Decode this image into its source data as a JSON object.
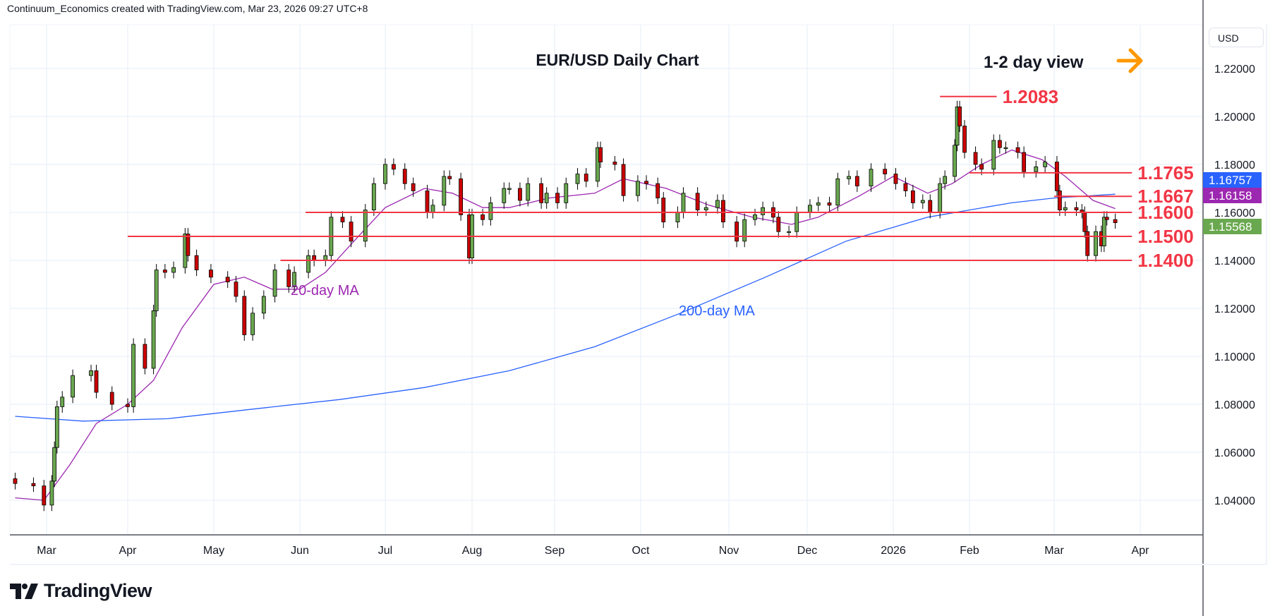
{
  "header": {
    "attribution": "Continuum_Economics created with TradingView.com, Mar 23, 2026 09:27 UTC+8"
  },
  "footer": {
    "logo_text": "TradingView"
  },
  "price_scale": {
    "currency": "USD"
  },
  "colors": {
    "up": "#6aa84f",
    "down": "#cc0000",
    "level": "#f23645",
    "ma20": "#9c27b0",
    "ma200": "#2962ff",
    "arrow": "#ff9800",
    "grid": "#e6eef5"
  },
  "chart_data": {
    "type": "candlestick",
    "title": "EUR/USD Daily Chart",
    "subtitle": "1-2 day view",
    "ylim": [
      1.025,
      1.235
    ],
    "y_ticks": [
      "1.04000",
      "1.06000",
      "1.08000",
      "1.10000",
      "1.12000",
      "1.14000",
      "1.16000",
      "1.18000",
      "1.20000",
      "1.22000"
    ],
    "x_ticks": [
      [
        "2025-03-01",
        "Mar"
      ],
      [
        "2025-04-01",
        "Apr"
      ],
      [
        "2025-05-01",
        "May"
      ],
      [
        "2025-06-01",
        "Jun"
      ],
      [
        "2025-07-01",
        "Jul"
      ],
      [
        "2025-08-01",
        "Aug"
      ],
      [
        "2025-09-01",
        "Sep"
      ],
      [
        "2025-10-01",
        "Oct"
      ],
      [
        "2025-11-01",
        "Nov"
      ],
      [
        "2025-12-01",
        "Dec"
      ],
      [
        "2026-01-01",
        "2026"
      ],
      [
        "2026-02-01",
        "Feb"
      ],
      [
        "2026-03-01",
        "Mar"
      ],
      [
        "2026-04-01",
        "Apr"
      ]
    ],
    "closes": [
      [
        "2025-02-17",
        1.047
      ],
      [
        "2025-02-24",
        1.046
      ],
      [
        "2025-02-28",
        1.038
      ],
      [
        "2025-03-03",
        1.048
      ],
      [
        "2025-03-04",
        1.062
      ],
      [
        "2025-03-05",
        1.079
      ],
      [
        "2025-03-07",
        1.083
      ],
      [
        "2025-03-11",
        1.092
      ],
      [
        "2025-03-18",
        1.094
      ],
      [
        "2025-03-20",
        1.085
      ],
      [
        "2025-03-26",
        1.08
      ],
      [
        "2025-04-01",
        1.079
      ],
      [
        "2025-04-03",
        1.105
      ],
      [
        "2025-04-07",
        1.095
      ],
      [
        "2025-04-10",
        1.119
      ],
      [
        "2025-04-11",
        1.136
      ],
      [
        "2025-04-14",
        1.135
      ],
      [
        "2025-04-17",
        1.137
      ],
      [
        "2025-04-21",
        1.151
      ],
      [
        "2025-04-22",
        1.142
      ],
      [
        "2025-04-25",
        1.136
      ],
      [
        "2025-04-30",
        1.133
      ],
      [
        "2025-05-06",
        1.131
      ],
      [
        "2025-05-09",
        1.125
      ],
      [
        "2025-05-12",
        1.109
      ],
      [
        "2025-05-15",
        1.118
      ],
      [
        "2025-05-19",
        1.125
      ],
      [
        "2025-05-23",
        1.136
      ],
      [
        "2025-05-28",
        1.129
      ],
      [
        "2025-05-30",
        1.135
      ],
      [
        "2025-06-04",
        1.142
      ],
      [
        "2025-06-06",
        1.14
      ],
      [
        "2025-06-10",
        1.142
      ],
      [
        "2025-06-12",
        1.158
      ],
      [
        "2025-06-16",
        1.156
      ],
      [
        "2025-06-19",
        1.148
      ],
      [
        "2025-06-24",
        1.161
      ],
      [
        "2025-06-27",
        1.172
      ],
      [
        "2025-07-01",
        1.18
      ],
      [
        "2025-07-04",
        1.178
      ],
      [
        "2025-07-08",
        1.172
      ],
      [
        "2025-07-11",
        1.169
      ],
      [
        "2025-07-16",
        1.16
      ],
      [
        "2025-07-18",
        1.163
      ],
      [
        "2025-07-22",
        1.175
      ],
      [
        "2025-07-24",
        1.174
      ],
      [
        "2025-07-28",
        1.159
      ],
      [
        "2025-07-31",
        1.141
      ],
      [
        "2025-08-01",
        1.159
      ],
      [
        "2025-08-05",
        1.157
      ],
      [
        "2025-08-08",
        1.164
      ],
      [
        "2025-08-13",
        1.17
      ],
      [
        "2025-08-15",
        1.17
      ],
      [
        "2025-08-19",
        1.165
      ],
      [
        "2025-08-22",
        1.172
      ],
      [
        "2025-08-27",
        1.164
      ],
      [
        "2025-08-29",
        1.168
      ],
      [
        "2025-09-02",
        1.164
      ],
      [
        "2025-09-05",
        1.172
      ],
      [
        "2025-09-09",
        1.176
      ],
      [
        "2025-09-12",
        1.173
      ],
      [
        "2025-09-16",
        1.187
      ],
      [
        "2025-09-17",
        1.181
      ],
      [
        "2025-09-22",
        1.18
      ],
      [
        "2025-09-25",
        1.167
      ],
      [
        "2025-09-30",
        1.173
      ],
      [
        "2025-10-03",
        1.172
      ],
      [
        "2025-10-07",
        1.166
      ],
      [
        "2025-10-09",
        1.156
      ],
      [
        "2025-10-14",
        1.16
      ],
      [
        "2025-10-16",
        1.168
      ],
      [
        "2025-10-21",
        1.161
      ],
      [
        "2025-10-24",
        1.162
      ],
      [
        "2025-10-28",
        1.165
      ],
      [
        "2025-10-30",
        1.156
      ],
      [
        "2025-11-04",
        1.148
      ],
      [
        "2025-11-07",
        1.157
      ],
      [
        "2025-11-11",
        1.159
      ],
      [
        "2025-11-14",
        1.162
      ],
      [
        "2025-11-18",
        1.158
      ],
      [
        "2025-11-20",
        1.152
      ],
      [
        "2025-11-24",
        1.152
      ],
      [
        "2025-11-27",
        1.16
      ],
      [
        "2025-12-02",
        1.163
      ],
      [
        "2025-12-05",
        1.164
      ],
      [
        "2025-12-09",
        1.163
      ],
      [
        "2025-12-12",
        1.174
      ],
      [
        "2025-12-16",
        1.175
      ],
      [
        "2025-12-19",
        1.171
      ],
      [
        "2025-12-24",
        1.178
      ],
      [
        "2025-12-29",
        1.176
      ],
      [
        "2026-01-02",
        1.172
      ],
      [
        "2026-01-06",
        1.169
      ],
      [
        "2026-01-09",
        1.164
      ],
      [
        "2026-01-13",
        1.165
      ],
      [
        "2026-01-16",
        1.16
      ],
      [
        "2026-01-20",
        1.172
      ],
      [
        "2026-01-22",
        1.175
      ],
      [
        "2026-01-26",
        1.188
      ],
      [
        "2026-01-27",
        1.204
      ],
      [
        "2026-01-28",
        1.196
      ],
      [
        "2026-01-30",
        1.185
      ],
      [
        "2026-02-03",
        1.18
      ],
      [
        "2026-02-05",
        1.178
      ],
      [
        "2026-02-09",
        1.19
      ],
      [
        "2026-02-11",
        1.187
      ],
      [
        "2026-02-13",
        1.187
      ],
      [
        "2026-02-17",
        1.185
      ],
      [
        "2026-02-19",
        1.177
      ],
      [
        "2026-02-23",
        1.179
      ],
      [
        "2026-02-26",
        1.181
      ],
      [
        "2026-03-02",
        1.169
      ],
      [
        "2026-03-03",
        1.161
      ],
      [
        "2026-03-05",
        1.162
      ],
      [
        "2026-03-09",
        1.161
      ],
      [
        "2026-03-11",
        1.16
      ],
      [
        "2026-03-12",
        1.152
      ],
      [
        "2026-03-13",
        1.142
      ],
      [
        "2026-03-16",
        1.152
      ],
      [
        "2026-03-18",
        1.146
      ],
      [
        "2026-03-19",
        1.158
      ],
      [
        "2026-03-20",
        1.157
      ],
      [
        "2026-03-23",
        1.1557
      ]
    ],
    "series": [
      {
        "name": "20-day MA",
        "last": "1.16158",
        "points": [
          [
            "2025-02-17",
            1.041
          ],
          [
            "2025-02-28",
            1.04
          ],
          [
            "2025-03-10",
            1.055
          ],
          [
            "2025-03-20",
            1.072
          ],
          [
            "2025-04-01",
            1.08
          ],
          [
            "2025-04-10",
            1.09
          ],
          [
            "2025-04-20",
            1.112
          ],
          [
            "2025-05-01",
            1.13
          ],
          [
            "2025-05-12",
            1.133
          ],
          [
            "2025-05-22",
            1.128
          ],
          [
            "2025-06-01",
            1.128
          ],
          [
            "2025-06-10",
            1.135
          ],
          [
            "2025-06-20",
            1.148
          ],
          [
            "2025-07-01",
            1.162
          ],
          [
            "2025-07-15",
            1.17
          ],
          [
            "2025-07-25",
            1.168
          ],
          [
            "2025-08-05",
            1.162
          ],
          [
            "2025-08-15",
            1.162
          ],
          [
            "2025-08-30",
            1.166
          ],
          [
            "2025-09-15",
            1.168
          ],
          [
            "2025-09-25",
            1.174
          ],
          [
            "2025-10-10",
            1.17
          ],
          [
            "2025-10-25",
            1.163
          ],
          [
            "2025-11-10",
            1.158
          ],
          [
            "2025-11-25",
            1.155
          ],
          [
            "2025-12-05",
            1.158
          ],
          [
            "2025-12-20",
            1.167
          ],
          [
            "2026-01-01",
            1.175
          ],
          [
            "2026-01-15",
            1.168
          ],
          [
            "2026-01-25",
            1.172
          ],
          [
            "2026-02-05",
            1.18
          ],
          [
            "2026-02-15",
            1.186
          ],
          [
            "2026-02-25",
            1.182
          ],
          [
            "2026-03-05",
            1.175
          ],
          [
            "2026-03-15",
            1.165
          ],
          [
            "2026-03-23",
            1.1616
          ]
        ]
      },
      {
        "name": "200-day MA",
        "last": "1.16757",
        "points": [
          [
            "2025-02-17",
            1.075
          ],
          [
            "2025-03-15",
            1.073
          ],
          [
            "2025-04-15",
            1.074
          ],
          [
            "2025-05-15",
            1.078
          ],
          [
            "2025-06-15",
            1.082
          ],
          [
            "2025-07-15",
            1.087
          ],
          [
            "2025-08-15",
            1.094
          ],
          [
            "2025-09-15",
            1.104
          ],
          [
            "2025-10-15",
            1.118
          ],
          [
            "2025-11-15",
            1.133
          ],
          [
            "2025-12-15",
            1.148
          ],
          [
            "2026-01-15",
            1.158
          ],
          [
            "2026-02-01",
            1.161
          ],
          [
            "2026-02-15",
            1.164
          ],
          [
            "2026-03-01",
            1.166
          ],
          [
            "2026-03-23",
            1.1676
          ]
        ]
      }
    ],
    "last_price": "1.15568",
    "levels": [
      {
        "label": "1.2083",
        "value": 1.2083,
        "from": "2026-01-20",
        "to": "2026-02-10"
      },
      {
        "label": "1.1765",
        "value": 1.1765,
        "from": "2026-02-01",
        "to": "2026-03-29"
      },
      {
        "label": "1.1667",
        "value": 1.1667,
        "from": "2026-03-01",
        "to": "2026-03-29"
      },
      {
        "label": "1.1600",
        "value": 1.16,
        "from": "2025-06-03",
        "to": "2026-03-29"
      },
      {
        "label": "1.1500",
        "value": 1.15,
        "from": "2025-04-01",
        "to": "2026-03-29"
      },
      {
        "label": "1.1400",
        "value": 1.14,
        "from": "2025-05-25",
        "to": "2026-03-29"
      }
    ],
    "annotations": {
      "ma20_label": "20-day MA",
      "ma200_label": "200-day MA"
    }
  }
}
